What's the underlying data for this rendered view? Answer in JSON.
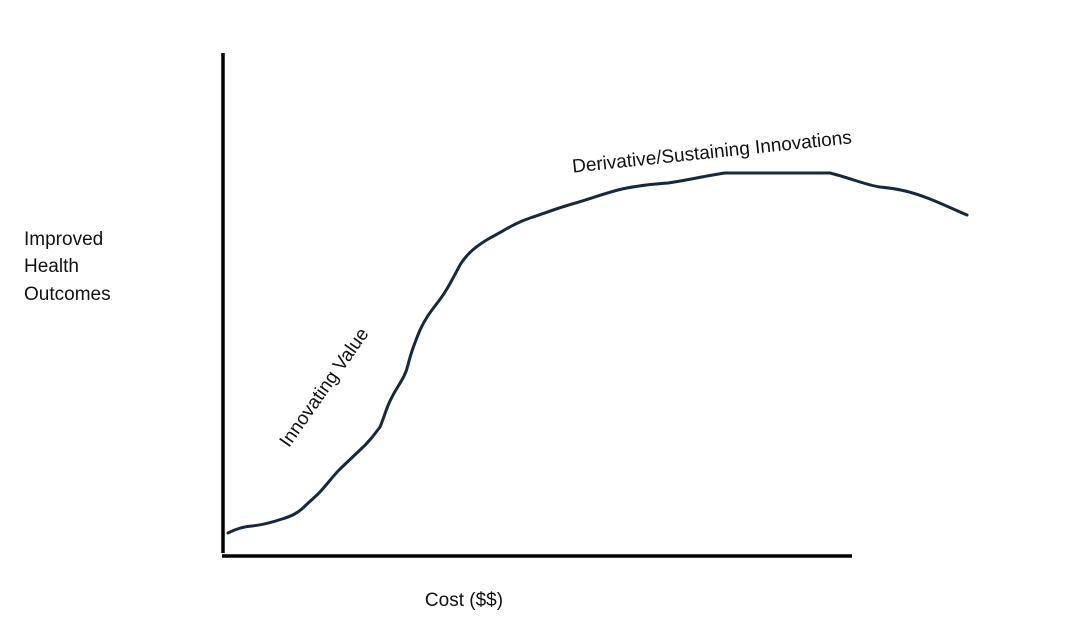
{
  "axes": {
    "y_label_lines": [
      "Improved",
      "Health",
      "Outcomes"
    ],
    "x_label": "Cost ($$)"
  },
  "annotations": {
    "lower_curve": "Innovating Value",
    "upper_curve": "Derivative/Sustaining Innovations"
  }
}
